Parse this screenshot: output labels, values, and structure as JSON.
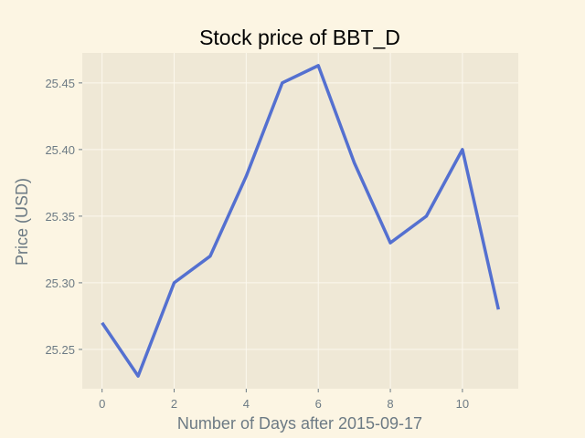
{
  "chart_data": {
    "type": "line",
    "title": "Stock price of BBT_D",
    "xlabel": "Number of Days after 2015-09-17",
    "ylabel": "Price (USD)",
    "xlim": [
      -0.55,
      11.55
    ],
    "ylim": [
      25.2205,
      25.4725
    ],
    "xticks": [
      0,
      2,
      4,
      6,
      8,
      10
    ],
    "yticks": [
      25.25,
      25.3,
      25.35,
      25.4,
      25.45
    ],
    "ytick_format_decimals": 2,
    "grid": true,
    "series": [
      {
        "values": [
          25.27,
          25.23,
          25.3,
          25.32,
          25.38,
          25.45,
          25.463,
          25.39,
          25.33,
          25.35,
          25.4,
          25.28
        ],
        "color": "#5470d0"
      }
    ],
    "x": [
      0,
      1,
      2,
      3,
      4,
      5,
      6,
      7,
      8,
      9,
      10,
      11
    ],
    "colors": {
      "figure_bg": "#fcf5e3",
      "plot_bg": "#efe8d6",
      "grid": "#fcf8ee",
      "text": "#6c7a84"
    }
  }
}
